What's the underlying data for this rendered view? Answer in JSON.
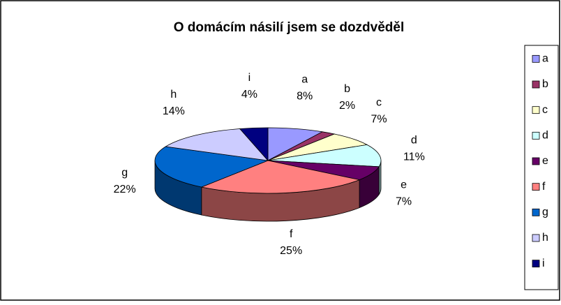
{
  "chart_data": {
    "type": "pie3d",
    "title": "O domácím násilí  jsem se dozdvěděl",
    "categories": [
      "a",
      "b",
      "c",
      "d",
      "e",
      "f",
      "g",
      "h",
      "i"
    ],
    "values": [
      8,
      2,
      7,
      11,
      7,
      25,
      22,
      14,
      4
    ],
    "value_labels": [
      "8%",
      "2%",
      "7%",
      "11%",
      "7%",
      "25%",
      "22%",
      "14%",
      "4%"
    ],
    "colors": [
      "#9999ff",
      "#993366",
      "#ffffcc",
      "#ccffff",
      "#660066",
      "#ff8080",
      "#0066cc",
      "#ccccff",
      "#000080"
    ],
    "legend": "right"
  }
}
